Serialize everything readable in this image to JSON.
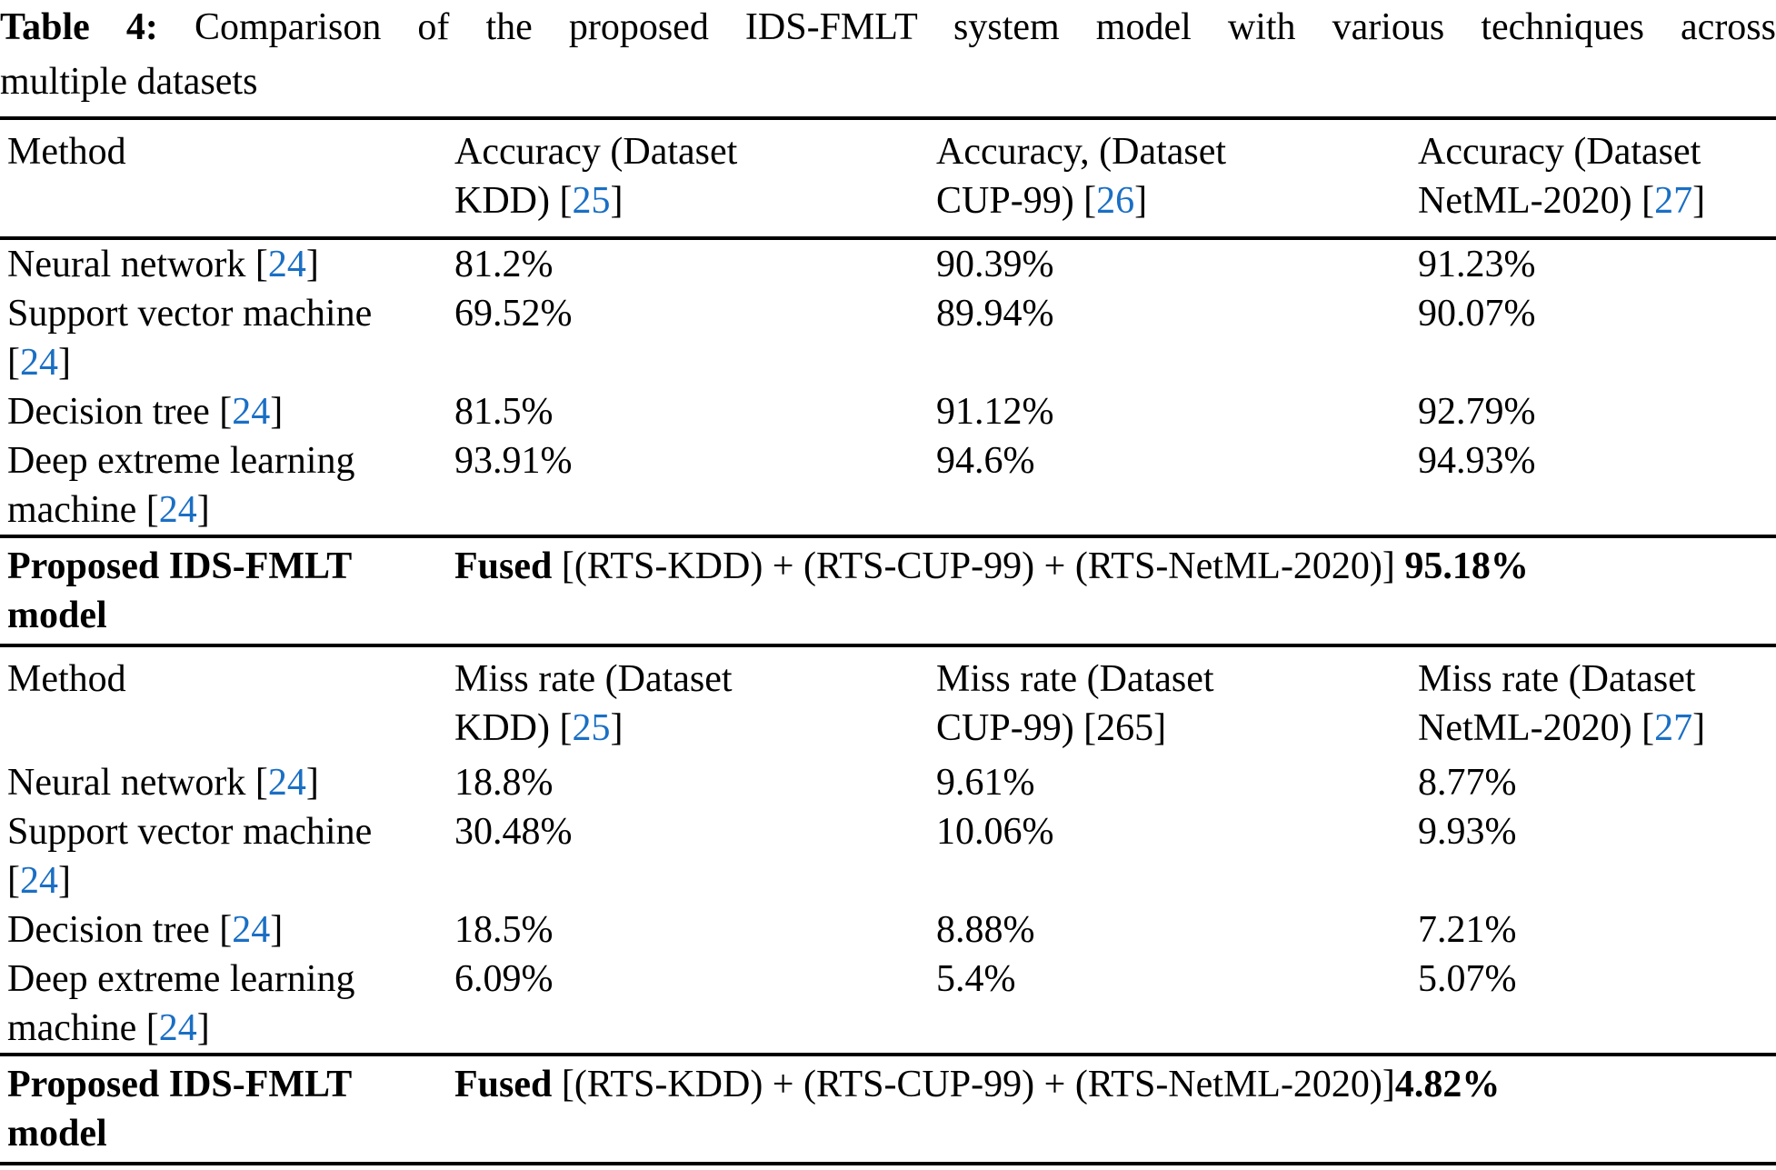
{
  "colors": {
    "link_blue": "#1a6fc4",
    "text": "#000000",
    "rule": "#000000",
    "background": "#ffffff"
  },
  "caption": {
    "line1_runs": [
      {
        "t": "Table 4:",
        "b": true
      },
      {
        "t": " Comparison of the proposed IDS-FMLT system model with various techniques across"
      }
    ],
    "line2": "multiple datasets"
  },
  "accuracy_section": {
    "header": {
      "method": "Method",
      "kdd_runs": [
        {
          "t": "Accuracy (Dataset"
        },
        {
          "br": true
        },
        {
          "t": "KDD) ["
        },
        {
          "t": "25",
          "link": true
        },
        {
          "t": "]"
        }
      ],
      "cup_runs": [
        {
          "t": "Accuracy, (Dataset"
        },
        {
          "br": true
        },
        {
          "t": "CUP-99) ["
        },
        {
          "t": "26",
          "link": true
        },
        {
          "t": "]"
        }
      ],
      "netml_runs": [
        {
          "t": "Accuracy (Dataset"
        },
        {
          "br": true
        },
        {
          "t": "NetML-2020) ["
        },
        {
          "t": "27",
          "link": true
        },
        {
          "t": "]"
        }
      ]
    },
    "rows": [
      {
        "method_runs": [
          {
            "t": "Neural network ["
          },
          {
            "t": "24",
            "link": true
          },
          {
            "t": "]"
          }
        ],
        "kdd": "81.2%",
        "cup": "90.39%",
        "netml": "91.23%"
      },
      {
        "method_runs": [
          {
            "t": "Support vector machine"
          },
          {
            "br": true
          },
          {
            "t": "["
          },
          {
            "t": "24",
            "link": true
          },
          {
            "t": "]"
          }
        ],
        "kdd": "69.52%",
        "cup": "89.94%",
        "netml": "90.07%"
      },
      {
        "method_runs": [
          {
            "t": "Decision tree ["
          },
          {
            "t": "24",
            "link": true
          },
          {
            "t": "]"
          }
        ],
        "kdd": "81.5%",
        "cup": "91.12%",
        "netml": "92.79%"
      },
      {
        "method_runs": [
          {
            "t": "Deep extreme learning"
          },
          {
            "br": true
          },
          {
            "t": "machine ["
          },
          {
            "t": "24",
            "link": true
          },
          {
            "t": "]"
          }
        ],
        "kdd": "93.91%",
        "cup": "94.6%",
        "netml": "94.93%"
      }
    ],
    "proposed": {
      "method_runs": [
        {
          "t": "Proposed IDS-FMLT",
          "b": true
        },
        {
          "br": true
        },
        {
          "t": "model",
          "b": true
        }
      ],
      "value_runs": [
        {
          "t": "Fused ",
          "b": true
        },
        {
          "t": "[(RTS-KDD) + (RTS-CUP-99) + (RTS-NetML-2020)] "
        },
        {
          "t": "95.18%",
          "b": true
        }
      ]
    }
  },
  "miss_rate_section": {
    "header": {
      "method": "Method",
      "kdd_runs": [
        {
          "t": "Miss rate (Dataset"
        },
        {
          "br": true
        },
        {
          "t": "KDD) ["
        },
        {
          "t": "25",
          "link": true
        },
        {
          "t": "]"
        }
      ],
      "cup_runs": [
        {
          "t": "Miss rate (Dataset"
        },
        {
          "br": true
        },
        {
          "t": "CUP-99) [265]"
        }
      ],
      "netml_runs": [
        {
          "t": "Miss rate (Dataset"
        },
        {
          "br": true
        },
        {
          "t": "NetML-2020) ["
        },
        {
          "t": "27",
          "link": true
        },
        {
          "t": "]"
        }
      ]
    },
    "rows": [
      {
        "method_runs": [
          {
            "t": "Neural network ["
          },
          {
            "t": "24",
            "link": true
          },
          {
            "t": "]"
          }
        ],
        "kdd": "18.8%",
        "cup": "9.61%",
        "netml": "8.77%"
      },
      {
        "method_runs": [
          {
            "t": "Support vector machine"
          },
          {
            "br": true
          },
          {
            "t": "["
          },
          {
            "t": "24",
            "link": true
          },
          {
            "t": "]"
          }
        ],
        "kdd": "30.48%",
        "cup": "10.06%",
        "netml": "9.93%"
      },
      {
        "method_runs": [
          {
            "t": "Decision tree ["
          },
          {
            "t": "24",
            "link": true
          },
          {
            "t": "]"
          }
        ],
        "kdd": "18.5%",
        "cup": "8.88%",
        "netml": "7.21%"
      },
      {
        "method_runs": [
          {
            "t": "Deep extreme learning"
          },
          {
            "br": true
          },
          {
            "t": "machine ["
          },
          {
            "t": "24",
            "link": true
          },
          {
            "t": "]"
          }
        ],
        "kdd": "6.09%",
        "cup": "5.4%",
        "netml": "5.07%"
      }
    ],
    "proposed": {
      "method_runs": [
        {
          "t": "Proposed IDS-FMLT",
          "b": true
        },
        {
          "br": true
        },
        {
          "t": "model",
          "b": true
        }
      ],
      "value_runs": [
        {
          "t": "Fused ",
          "b": true
        },
        {
          "t": "[(RTS-KDD) + (RTS-CUP-99) + (RTS-NetML-2020)]"
        },
        {
          "t": "4.82%",
          "b": true
        }
      ]
    }
  }
}
